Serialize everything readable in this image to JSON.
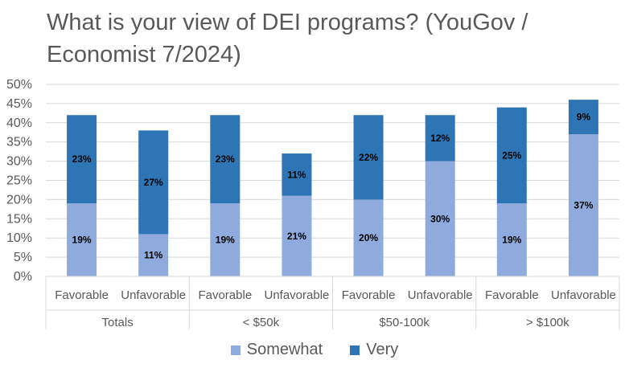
{
  "chart_data": {
    "type": "bar",
    "stacked": true,
    "title": "What is your view of DEI programs? (YouGov / Economist 7/2024)",
    "xlabel": "",
    "ylabel": "",
    "ylim": [
      0,
      50
    ],
    "y_ticks": [
      "0%",
      "5%",
      "10%",
      "15%",
      "20%",
      "25%",
      "30%",
      "35%",
      "40%",
      "45%",
      "50%"
    ],
    "groups": [
      "Totals",
      "< $50k",
      "$50-100k",
      "> $100k"
    ],
    "categories": [
      "Favorable",
      "Unfavorable",
      "Favorable",
      "Unfavorable",
      "Favorable",
      "Unfavorable",
      "Favorable",
      "Unfavorable"
    ],
    "series": [
      {
        "name": "Somewhat",
        "color": "#8FAADC",
        "values": [
          19,
          11,
          19,
          21,
          20,
          30,
          19,
          37
        ],
        "labels": [
          "19%",
          "11%",
          "19%",
          "21%",
          "20%",
          "30%",
          "19%",
          "37%"
        ]
      },
      {
        "name": "Very",
        "color": "#2E75B6",
        "values": [
          23,
          27,
          23,
          11,
          22,
          12,
          25,
          9
        ],
        "labels": [
          "23%",
          "27%",
          "23%",
          "11%",
          "22%",
          "12%",
          "25%",
          "9%"
        ]
      }
    ],
    "grid": true,
    "legend_position": "bottom"
  }
}
